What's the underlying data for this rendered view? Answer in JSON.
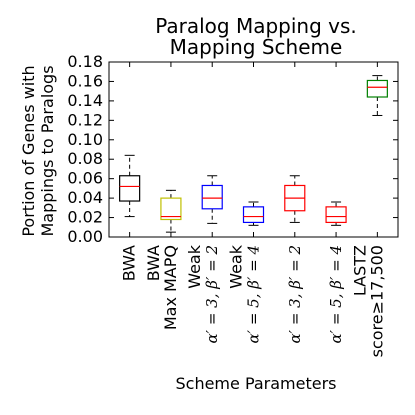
{
  "chart_data": {
    "type": "box",
    "title": [
      "Paralog Mapping vs.",
      "Mapping Scheme"
    ],
    "xlabel": "Scheme Parameters",
    "ylabel": [
      "Portion of Genes with",
      "Mappings to Paralogs"
    ],
    "ylim": [
      0.0,
      0.18
    ],
    "yticks": [
      "0.00",
      "0.02",
      "0.04",
      "0.06",
      "0.08",
      "0.10",
      "0.12",
      "0.14",
      "0.16",
      "0.18"
    ],
    "grid": false,
    "categories": [
      {
        "lines": [
          "BWA"
        ],
        "math": false
      },
      {
        "lines": [
          "BWA",
          "Max MAPQ"
        ],
        "math": false
      },
      {
        "lines": [
          "Weak",
          "α′ = 3, β′ = 2"
        ],
        "math": true
      },
      {
        "lines": [
          "Weak",
          "α′ = 5, β′ = 4"
        ],
        "math": true
      },
      {
        "lines": [
          "α′ = 3, β′ = 2"
        ],
        "math": true
      },
      {
        "lines": [
          "α′ = 5, β′ = 4"
        ],
        "math": true
      },
      {
        "lines": [
          "LASTZ",
          "score≥17,500"
        ],
        "math": false
      }
    ],
    "boxes": [
      {
        "whisker_low": 0.021,
        "q1": 0.037,
        "median": 0.052,
        "q3": 0.063,
        "whisker_high": 0.084,
        "color": "#000000"
      },
      {
        "whisker_low": 0.005,
        "q1": 0.018,
        "median": 0.021,
        "q3": 0.04,
        "whisker_high": 0.048,
        "color": "#bfbf00"
      },
      {
        "whisker_low": 0.014,
        "q1": 0.029,
        "median": 0.04,
        "q3": 0.053,
        "whisker_high": 0.063,
        "color": "#0000ff"
      },
      {
        "whisker_low": 0.012,
        "q1": 0.015,
        "median": 0.021,
        "q3": 0.031,
        "whisker_high": 0.036,
        "color": "#0000ff"
      },
      {
        "whisker_low": 0.015,
        "q1": 0.027,
        "median": 0.04,
        "q3": 0.053,
        "whisker_high": 0.063,
        "color": "#ff0000"
      },
      {
        "whisker_low": 0.012,
        "q1": 0.015,
        "median": 0.021,
        "q3": 0.031,
        "whisker_high": 0.036,
        "color": "#ff0000"
      },
      {
        "whisker_low": 0.125,
        "q1": 0.144,
        "median": 0.154,
        "q3": 0.161,
        "whisker_high": 0.166,
        "color": "#008000"
      }
    ],
    "median_color": "#ff0000",
    "whisker_color": "#000000"
  }
}
